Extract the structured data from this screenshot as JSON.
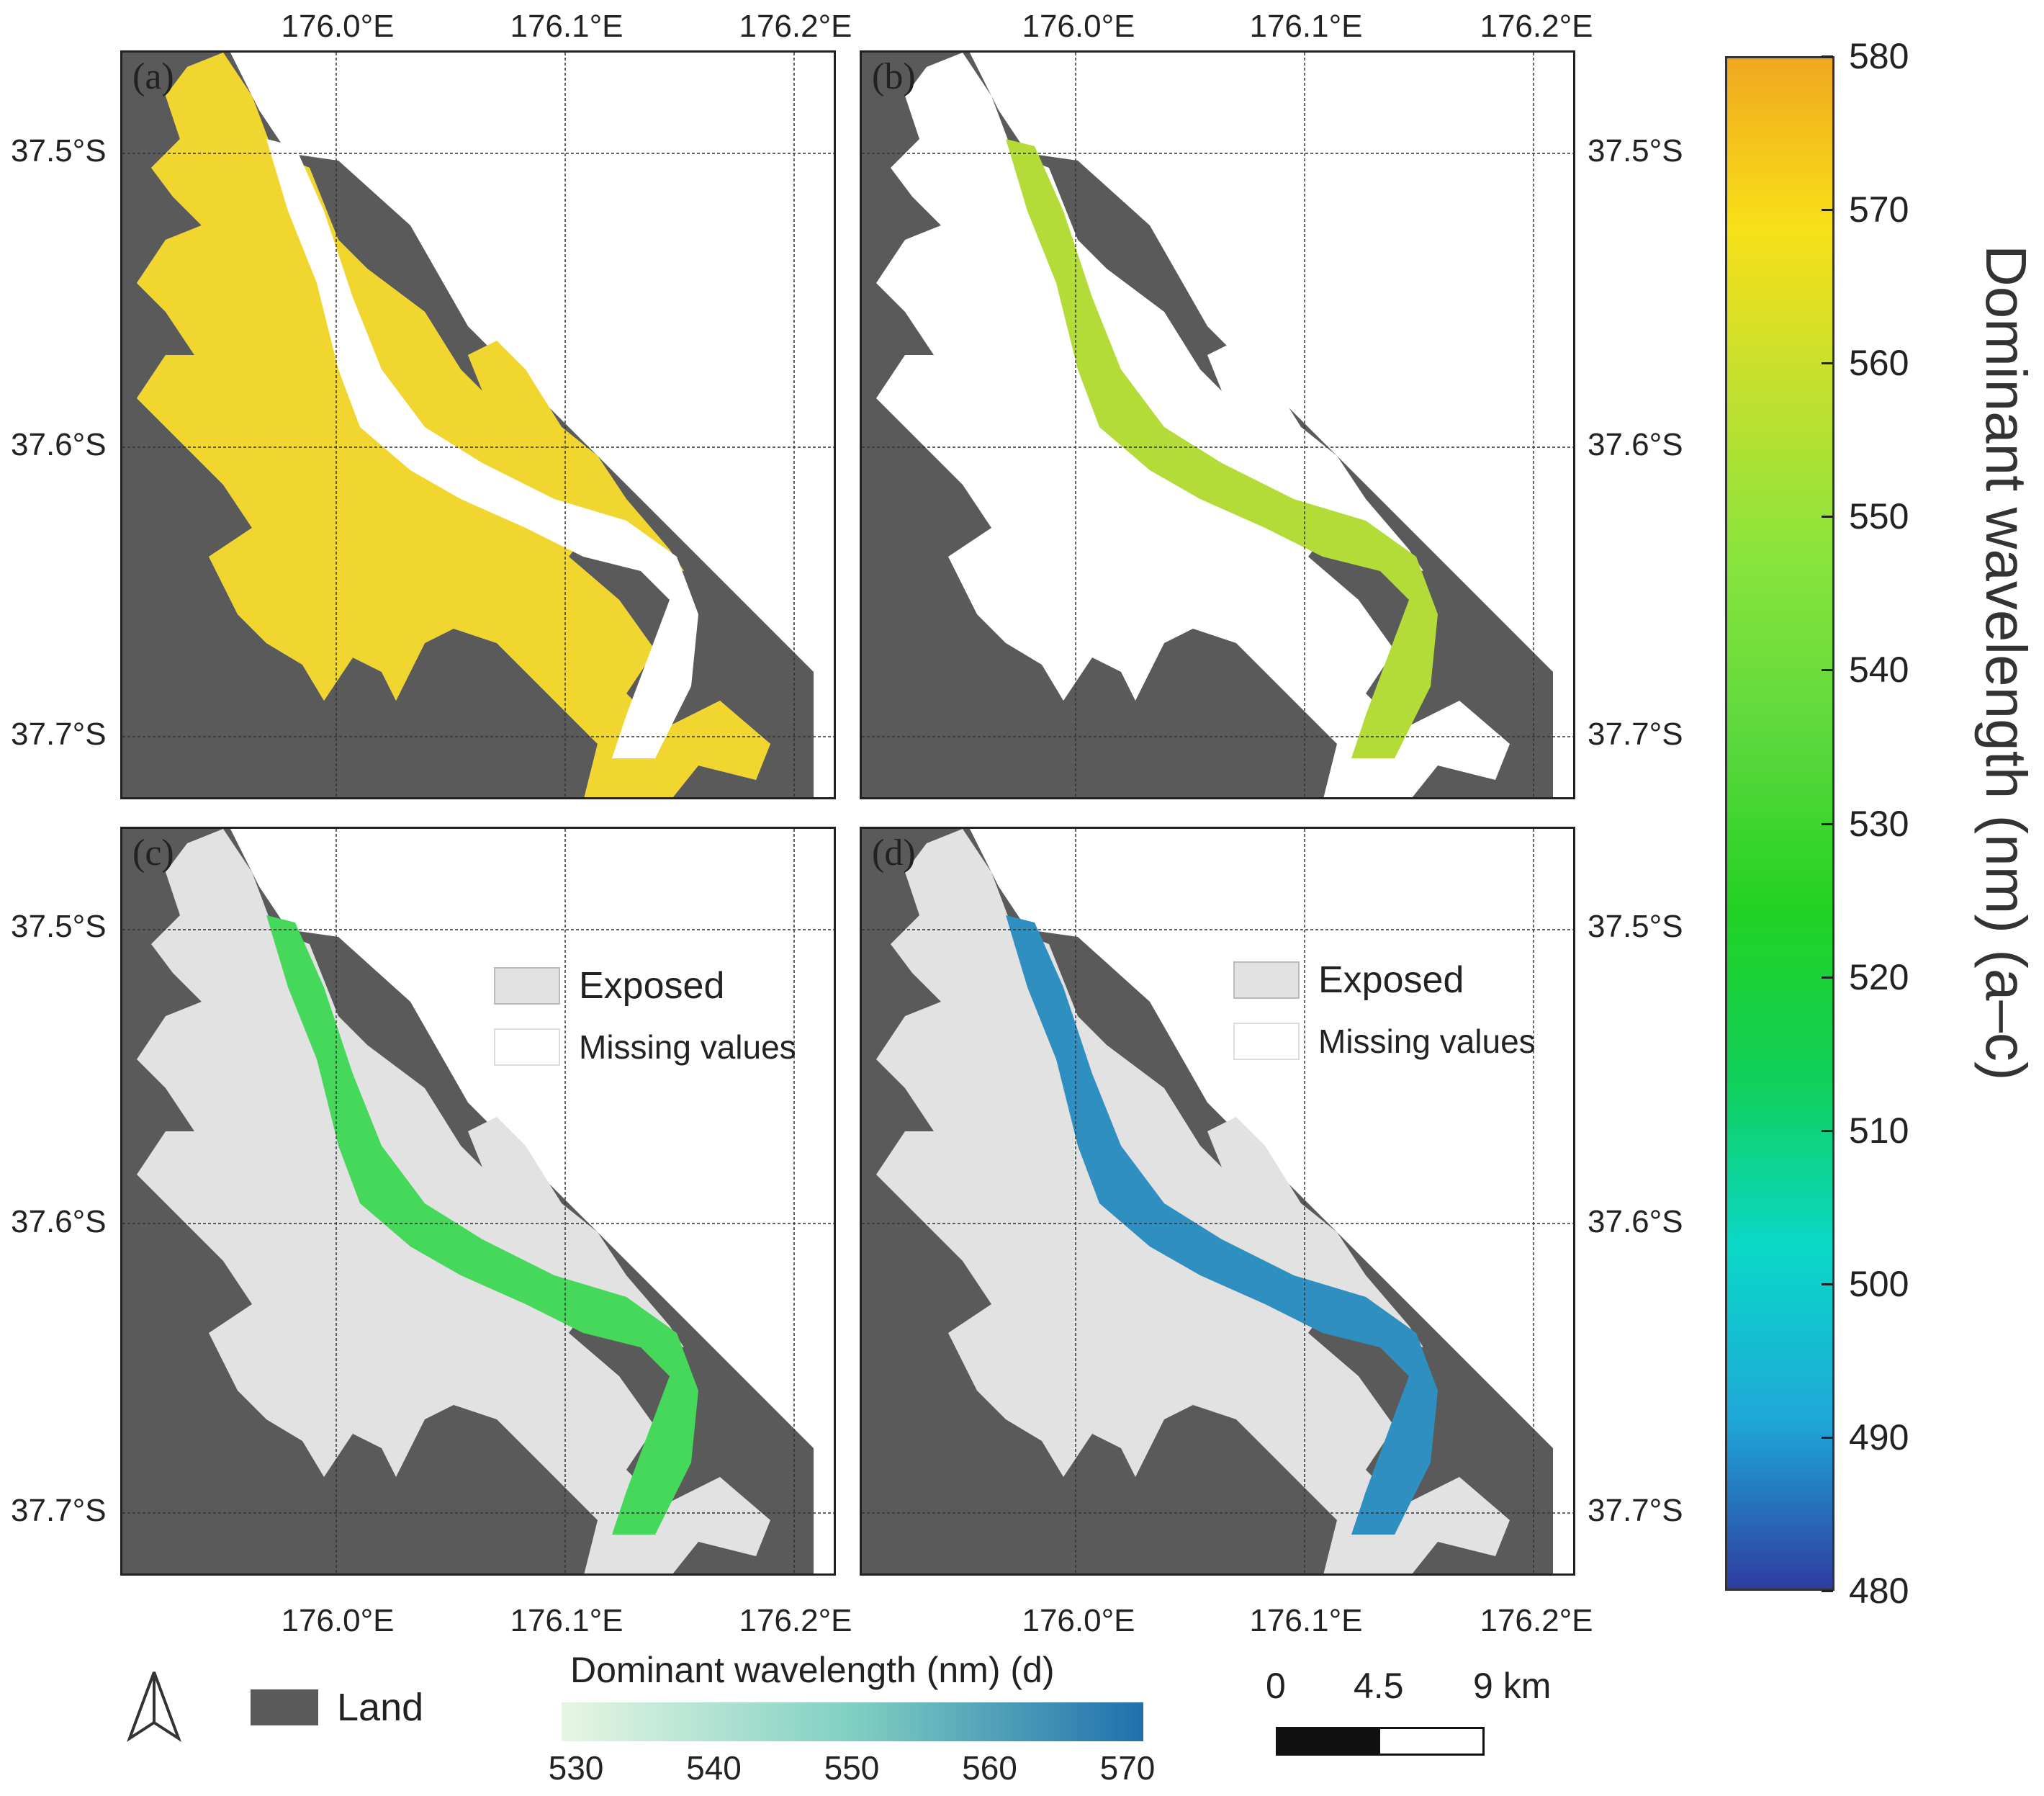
{
  "lon_labels": [
    "176.0°E",
    "176.1°E",
    "176.2°E"
  ],
  "lat_labels": [
    "37.5°S",
    "37.6°S",
    "37.7°S"
  ],
  "panels": [
    {
      "id": "a",
      "label": "(a)"
    },
    {
      "id": "b",
      "label": "(b)"
    },
    {
      "id": "c",
      "label": "(c)"
    },
    {
      "id": "d",
      "label": "(d)"
    }
  ],
  "panel_legend": {
    "exposed": "Exposed",
    "missing": "Missing values"
  },
  "colorbar_main": {
    "title": "Dominant wavelength (nm) (a–c)",
    "ticks": [
      "580",
      "570",
      "560",
      "550",
      "540",
      "530",
      "520",
      "510",
      "500",
      "490",
      "480"
    ],
    "min": 480,
    "max": 580,
    "colors": [
      "#f0a81e",
      "#f8e018",
      "#bfe030",
      "#86e43c",
      "#5cd83c",
      "#22d222",
      "#10d05a",
      "#0ad8c8",
      "#1fa8d8",
      "#2e3da0"
    ]
  },
  "colorbar_d": {
    "title": "Dominant wavelength (nm) (d)",
    "ticks": [
      "530",
      "540",
      "550",
      "560",
      "570"
    ],
    "min": 530,
    "max": 570,
    "colors": [
      "#e8f6e4",
      "#7fd0c2",
      "#1f6fae"
    ]
  },
  "land_legend": {
    "label": "Land",
    "color": "#5a5a5a"
  },
  "north_arrow": "north-arrow",
  "scale_bar": {
    "labels": [
      "0",
      "4.5",
      "9 km"
    ]
  },
  "palette": {
    "land": "#5a5a5a",
    "exposed": "#e2e2e2",
    "a_fill": "#f0d21a",
    "b_fill": "#b4dc38",
    "c_fill": "#46d85a",
    "d_fill": "#2f8fc0"
  }
}
